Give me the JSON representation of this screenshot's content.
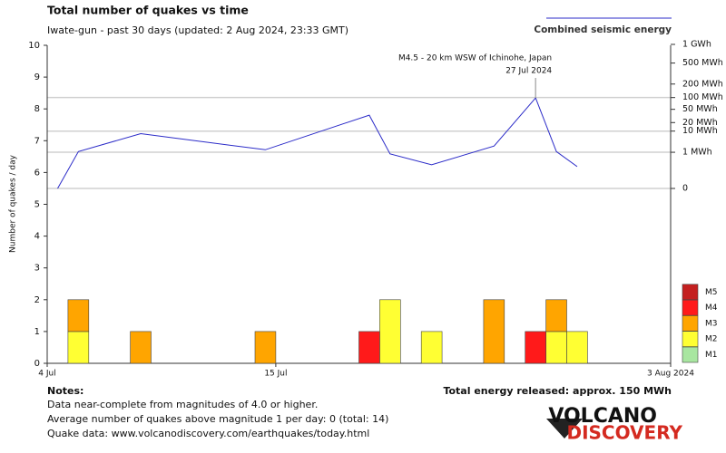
{
  "chart_data": {
    "type": "bar",
    "title": "Total number of quakes vs time",
    "subtitle": "Iwate-gun - past 30 days (updated: 2 Aug 2024, 23:33 GMT)",
    "ylabel": "Number of quakes / day",
    "x": [
      0,
      1,
      2,
      3,
      4,
      5,
      6,
      7,
      8,
      9,
      10,
      11,
      12,
      13,
      14,
      15,
      16,
      17,
      18,
      19,
      20,
      21,
      22,
      23,
      24,
      25,
      26,
      27,
      28,
      29
    ],
    "xlim": [
      0,
      30
    ],
    "xticks": [
      {
        "value": 0,
        "label": "4 Jul"
      },
      {
        "value": 11,
        "label": "15 Jul"
      },
      {
        "value": 30,
        "label": "3 Aug 2024"
      }
    ],
    "ylim": [
      0,
      10
    ],
    "yticks": [
      0,
      1,
      2,
      3,
      4,
      5,
      6,
      7,
      8,
      9,
      10
    ],
    "y2lim": [
      0,
      1000
    ],
    "y2scale": "power",
    "y2exponent": 0.2,
    "y2ticks": [
      0,
      {
        "value": 1,
        "label": "1 MWh"
      },
      {
        "value": 10,
        "label": "10 MWh"
      },
      {
        "value": 20,
        "label": "20 MWh"
      },
      {
        "value": 50,
        "label": "50 MWh"
      },
      {
        "value": 100,
        "label": "100 MWh"
      },
      {
        "value": 200,
        "label": "200 MWh"
      },
      {
        "value": 500,
        "label": "500 MWh"
      },
      {
        "value": 1000,
        "label": "1 GWh"
      }
    ],
    "series": [
      {
        "name": "M1",
        "color": "#a8e6a0",
        "values": [
          0,
          0,
          0,
          0,
          0,
          0,
          0,
          0,
          0,
          0,
          0,
          0,
          0,
          0,
          0,
          0,
          0,
          0,
          0,
          0,
          0,
          0,
          0,
          0,
          0,
          0,
          0,
          0,
          0,
          0
        ]
      },
      {
        "name": "M2",
        "color": "#ffff33",
        "values": [
          0,
          1,
          0,
          0,
          0,
          0,
          0,
          0,
          0,
          0,
          0,
          0,
          0,
          0,
          0,
          0,
          2,
          0,
          1,
          0,
          0,
          0,
          0,
          0,
          1,
          1,
          0,
          0,
          0,
          0
        ]
      },
      {
        "name": "M3",
        "color": "#ffa500",
        "values": [
          0,
          1,
          0,
          0,
          1,
          0,
          0,
          0,
          0,
          0,
          1,
          0,
          0,
          0,
          0,
          0,
          0,
          0,
          0,
          0,
          0,
          2,
          0,
          0,
          1,
          0,
          0,
          0,
          0,
          0
        ]
      },
      {
        "name": "M4",
        "color": "#ff1a1a",
        "values": [
          0,
          0,
          0,
          0,
          0,
          0,
          0,
          0,
          0,
          0,
          0,
          0,
          0,
          0,
          0,
          1,
          0,
          0,
          0,
          0,
          0,
          0,
          0,
          1,
          0,
          0,
          0,
          0,
          0,
          0
        ]
      },
      {
        "name": "M5",
        "color": "#c42020",
        "values": [
          0,
          0,
          0,
          0,
          0,
          0,
          0,
          0,
          0,
          0,
          0,
          0,
          0,
          0,
          0,
          0,
          0,
          0,
          0,
          0,
          0,
          0,
          0,
          0,
          0,
          0,
          0,
          0,
          0,
          0
        ]
      },
      {
        "name": "Combined seismic energy",
        "type": "line",
        "axis": "y2",
        "color": "#2b2bc8",
        "x": [
          0,
          1,
          4,
          10,
          15,
          16,
          18,
          21,
          23,
          24,
          25
        ],
        "values": [
          0,
          1.1,
          8,
          1.4,
          34,
          0.8,
          0.12,
          2.2,
          98,
          1.1,
          0.08
        ]
      }
    ],
    "annotation": {
      "text": "M4.5 - 20 km WSW of Ichinohe, Japan",
      "date": "27 Jul 2024"
    },
    "total_energy": "Total energy released: approx. 150 MWh",
    "notes": {
      "title": "Notes:",
      "lines": [
        "Data near-complete from magnitudes of 4.0 or higher.",
        "Average number of quakes above magnitude 1 per day: 0 (total: 14)",
        "Quake data: www.volcanodiscovery.com/earthquakes/today.html"
      ]
    },
    "logo": {
      "top": "VOLCANO",
      "bottom": "DISCOVERY"
    }
  }
}
